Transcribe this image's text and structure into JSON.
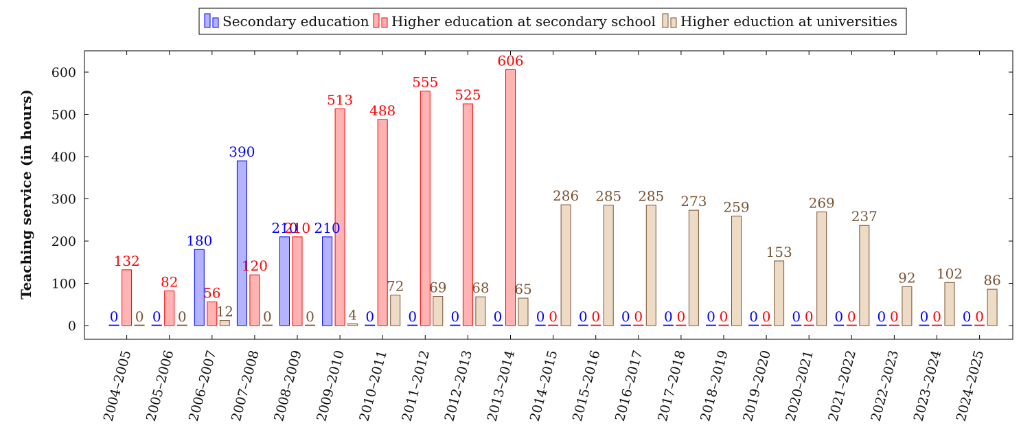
{
  "chart_data": {
    "type": "bar",
    "title": "",
    "xlabel": "",
    "ylabel": "Teaching service (in hours)",
    "ylim": [
      -30,
      660
    ],
    "yticks": [
      0,
      100,
      200,
      300,
      400,
      500,
      600
    ],
    "grid": false,
    "legend_position": "top",
    "categories": [
      "2004–2005",
      "2005–2006",
      "2006–2007",
      "2007–2008",
      "2008–2009",
      "2009–2010",
      "2010–2011",
      "2011–2012",
      "2012–2013",
      "2013–2014",
      "2014–2015",
      "2015–2016",
      "2016–2017",
      "2017–2018",
      "2018–2019",
      "2019–2020",
      "2020–2021",
      "2021–2022",
      "2022–2023",
      "2023–2024",
      "2024–2025"
    ],
    "series": [
      {
        "name": "Secondary education",
        "fill": "#b3b3ff",
        "stroke": "#0000ff",
        "label_color": "#0000ff",
        "values": [
          0,
          0,
          180,
          390,
          210,
          210,
          0,
          0,
          0,
          0,
          0,
          0,
          0,
          0,
          0,
          0,
          0,
          0,
          0,
          0,
          0
        ]
      },
      {
        "name": "Higher education at secondary school",
        "fill": "#ffb3b3",
        "stroke": "#ff0000",
        "label_color": "#ff0000",
        "values": [
          132,
          82,
          56,
          120,
          210,
          513,
          488,
          555,
          525,
          606,
          0,
          0,
          0,
          0,
          0,
          0,
          0,
          0,
          0,
          0,
          0
        ]
      },
      {
        "name": "Higher eduction at universities",
        "fill": "#eddbc6",
        "stroke": "#7a5230",
        "label_color": "#7a5230",
        "values": [
          0,
          0,
          12,
          0,
          0,
          4,
          72,
          69,
          68,
          65,
          286,
          285,
          285,
          273,
          259,
          153,
          269,
          237,
          92,
          102,
          86
        ]
      }
    ]
  }
}
